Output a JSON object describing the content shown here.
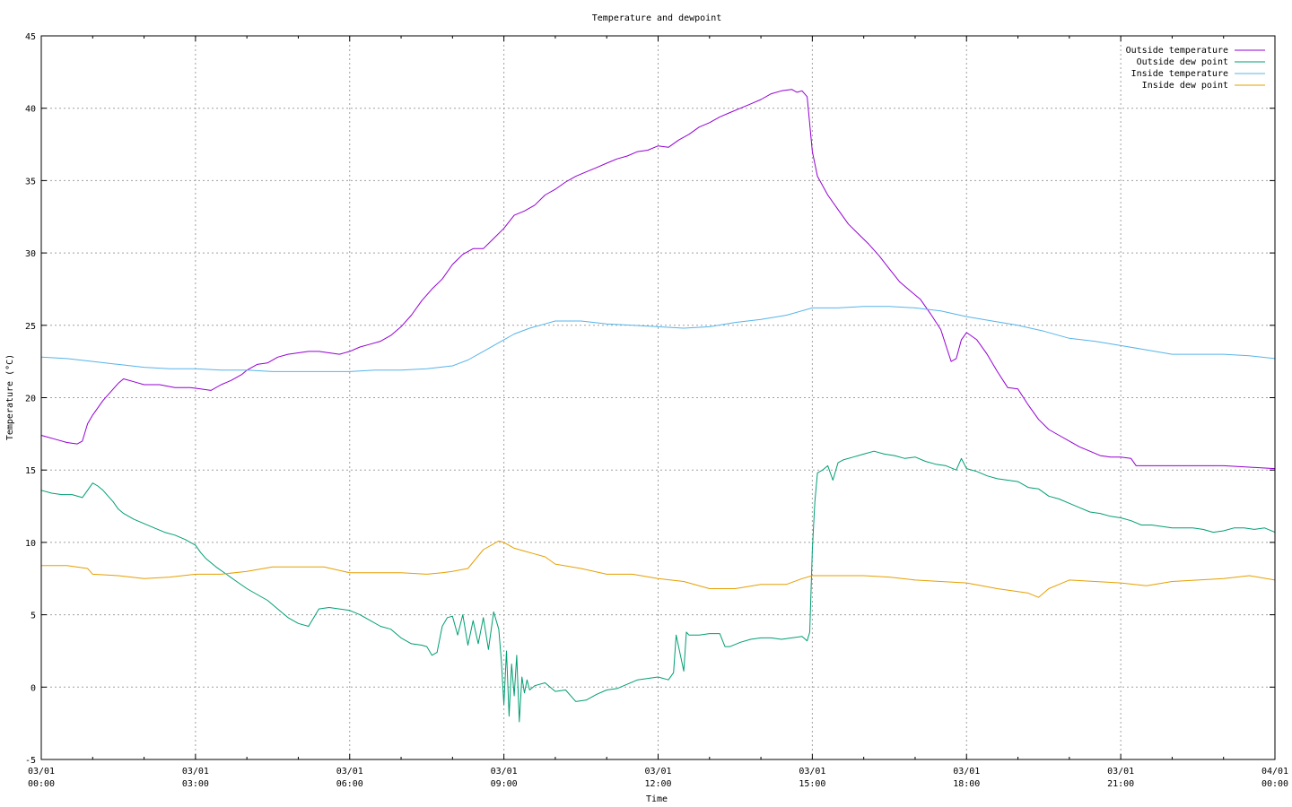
{
  "chart_data": {
    "type": "line",
    "title": "Temperature and dewpoint",
    "xlabel": "Time",
    "ylabel": "Temperature (°C)",
    "ylim": [
      -5,
      45
    ],
    "yticks": [
      -5,
      0,
      5,
      10,
      15,
      20,
      25,
      30,
      35,
      40,
      45
    ],
    "xlim": [
      "03/01 00:00",
      "04/01 00:00"
    ],
    "xticks": [
      {
        "hour": 0,
        "date": "03/01",
        "time": "00:00"
      },
      {
        "hour": 3,
        "date": "03/01",
        "time": "03:00"
      },
      {
        "hour": 6,
        "date": "03/01",
        "time": "06:00"
      },
      {
        "hour": 9,
        "date": "03/01",
        "time": "09:00"
      },
      {
        "hour": 12,
        "date": "03/01",
        "time": "12:00"
      },
      {
        "hour": 15,
        "date": "03/01",
        "time": "15:00"
      },
      {
        "hour": 18,
        "date": "03/01",
        "time": "18:00"
      },
      {
        "hour": 21,
        "date": "03/01",
        "time": "21:00"
      },
      {
        "hour": 24,
        "date": "04/01",
        "time": "00:00"
      }
    ],
    "minor_hours": [
      1,
      2,
      4,
      5,
      7,
      8,
      10,
      11,
      13,
      14,
      16,
      17,
      19,
      20,
      22,
      23
    ],
    "grid": true,
    "legend": "top-right",
    "series": [
      {
        "name": "Outside temperature",
        "color": "#9400d3",
        "x": [
          0,
          0.3,
          0.5,
          0.7,
          0.8,
          0.9,
          1.0,
          1.2,
          1.4,
          1.5,
          1.6,
          1.8,
          2.0,
          2.3,
          2.6,
          2.9,
          3.1,
          3.3,
          3.5,
          3.7,
          3.9,
          4.0,
          4.2,
          4.4,
          4.6,
          4.8,
          5.0,
          5.2,
          5.4,
          5.6,
          5.8,
          6.0,
          6.2,
          6.4,
          6.6,
          6.8,
          7.0,
          7.2,
          7.4,
          7.6,
          7.8,
          8.0,
          8.2,
          8.4,
          8.6,
          8.8,
          9.0,
          9.2,
          9.4,
          9.6,
          9.8,
          10.0,
          10.2,
          10.4,
          10.6,
          10.8,
          11.0,
          11.2,
          11.4,
          11.6,
          11.8,
          12.0,
          12.2,
          12.4,
          12.6,
          12.8,
          13.0,
          13.2,
          13.4,
          13.6,
          13.8,
          14.0,
          14.2,
          14.4,
          14.6,
          14.7,
          14.8,
          14.9,
          15.0,
          15.1,
          15.3,
          15.5,
          15.7,
          15.9,
          16.1,
          16.3,
          16.5,
          16.7,
          16.9,
          17.1,
          17.3,
          17.5,
          17.6,
          17.7,
          17.8,
          17.9,
          18.0,
          18.2,
          18.4,
          18.6,
          18.8,
          19.0,
          19.2,
          19.4,
          19.6,
          19.8,
          20.0,
          20.2,
          20.4,
          20.6,
          20.8,
          21.0,
          21.2,
          21.3,
          21.5,
          22.0,
          22.5,
          23.0,
          23.5,
          24.0
        ],
        "y": [
          17.4,
          17.1,
          16.9,
          16.8,
          17.0,
          18.2,
          18.8,
          19.8,
          20.6,
          21.0,
          21.3,
          21.1,
          20.9,
          20.9,
          20.7,
          20.7,
          20.6,
          20.5,
          20.9,
          21.2,
          21.6,
          21.9,
          22.3,
          22.4,
          22.8,
          23.0,
          23.1,
          23.2,
          23.2,
          23.1,
          23.0,
          23.2,
          23.5,
          23.7,
          23.9,
          24.3,
          24.9,
          25.7,
          26.7,
          27.5,
          28.2,
          29.2,
          29.9,
          30.3,
          30.3,
          31.0,
          31.7,
          32.6,
          32.9,
          33.3,
          34.0,
          34.4,
          34.9,
          35.3,
          35.6,
          35.9,
          36.2,
          36.5,
          36.7,
          37.0,
          37.1,
          37.4,
          37.3,
          37.8,
          38.2,
          38.7,
          39.0,
          39.4,
          39.7,
          40.0,
          40.3,
          40.6,
          41.0,
          41.2,
          41.3,
          41.1,
          41.2,
          40.8,
          37.0,
          35.3,
          34.0,
          33.0,
          32.0,
          31.3,
          30.6,
          29.8,
          28.9,
          28.0,
          27.4,
          26.8,
          25.8,
          24.7,
          23.6,
          22.5,
          22.7,
          24.0,
          24.5,
          24.0,
          23.0,
          21.8,
          20.7,
          20.6,
          19.5,
          18.5,
          17.8,
          17.4,
          17.0,
          16.6,
          16.3,
          16.0,
          15.9,
          15.9,
          15.8,
          15.3,
          15.3,
          15.3,
          15.3,
          15.3,
          15.2,
          15.1
        ]
      },
      {
        "name": "Outside dew point",
        "color": "#009e73",
        "x": [
          0,
          0.2,
          0.4,
          0.6,
          0.8,
          0.9,
          1.0,
          1.1,
          1.2,
          1.3,
          1.4,
          1.5,
          1.6,
          1.8,
          2.0,
          2.2,
          2.4,
          2.6,
          2.8,
          3.0,
          3.1,
          3.2,
          3.4,
          3.6,
          3.8,
          4.0,
          4.2,
          4.4,
          4.6,
          4.8,
          5.0,
          5.2,
          5.4,
          5.6,
          5.8,
          6.0,
          6.2,
          6.4,
          6.6,
          6.8,
          7.0,
          7.2,
          7.4,
          7.5,
          7.6,
          7.7,
          7.8,
          7.9,
          8.0,
          8.1,
          8.2,
          8.3,
          8.4,
          8.5,
          8.6,
          8.7,
          8.8,
          8.9,
          8.95,
          9.0,
          9.05,
          9.1,
          9.15,
          9.2,
          9.25,
          9.3,
          9.35,
          9.4,
          9.45,
          9.5,
          9.6,
          9.8,
          10.0,
          10.2,
          10.4,
          10.6,
          10.8,
          11.0,
          11.2,
          11.4,
          11.6,
          11.8,
          12.0,
          12.2,
          12.3,
          12.35,
          12.5,
          12.55,
          12.6,
          12.8,
          13.0,
          13.2,
          13.3,
          13.4,
          13.6,
          13.8,
          14.0,
          14.2,
          14.4,
          14.6,
          14.8,
          14.9,
          14.95,
          15.0,
          15.05,
          15.1,
          15.2,
          15.3,
          15.4,
          15.5,
          15.6,
          15.8,
          16.0,
          16.2,
          16.4,
          16.6,
          16.8,
          17.0,
          17.2,
          17.4,
          17.6,
          17.8,
          17.9,
          18.0,
          18.2,
          18.4,
          18.6,
          18.8,
          19.0,
          19.2,
          19.4,
          19.6,
          19.8,
          20.0,
          20.2,
          20.4,
          20.6,
          20.8,
          21.0,
          21.2,
          21.4,
          21.6,
          21.8,
          22.0,
          22.2,
          22.4,
          22.6,
          22.8,
          23.0,
          23.2,
          23.4,
          23.6,
          23.8,
          24.0
        ],
        "y": [
          13.6,
          13.4,
          13.3,
          13.3,
          13.1,
          13.6,
          14.1,
          13.9,
          13.6,
          13.2,
          12.8,
          12.3,
          12.0,
          11.6,
          11.3,
          11.0,
          10.7,
          10.5,
          10.2,
          9.8,
          9.3,
          8.9,
          8.3,
          7.8,
          7.3,
          6.8,
          6.4,
          6.0,
          5.4,
          4.8,
          4.4,
          4.2,
          5.4,
          5.5,
          5.4,
          5.3,
          5.0,
          4.6,
          4.2,
          4.0,
          3.4,
          3.0,
          2.9,
          2.8,
          2.2,
          2.4,
          4.2,
          4.8,
          4.9,
          3.6,
          5.0,
          2.9,
          4.6,
          3.0,
          4.8,
          2.6,
          5.2,
          4.0,
          1.8,
          -1.2,
          2.5,
          -2.0,
          1.6,
          -0.6,
          2.2,
          -2.4,
          0.7,
          -0.4,
          0.5,
          -0.2,
          0.1,
          0.3,
          -0.3,
          -0.2,
          -1.0,
          -0.9,
          -0.5,
          -0.2,
          -0.1,
          0.2,
          0.5,
          0.6,
          0.7,
          0.5,
          1.0,
          3.6,
          1.1,
          3.8,
          3.6,
          3.6,
          3.7,
          3.7,
          2.8,
          2.8,
          3.1,
          3.3,
          3.4,
          3.4,
          3.3,
          3.4,
          3.5,
          3.2,
          3.8,
          9.5,
          12.8,
          14.8,
          15.0,
          15.3,
          14.3,
          15.5,
          15.7,
          15.9,
          16.1,
          16.3,
          16.1,
          16.0,
          15.8,
          15.9,
          15.6,
          15.4,
          15.3,
          15.0,
          15.8,
          15.1,
          14.9,
          14.6,
          14.4,
          14.3,
          14.2,
          13.8,
          13.7,
          13.2,
          13.0,
          12.7,
          12.4,
          12.1,
          12.0,
          11.8,
          11.7,
          11.5,
          11.2,
          11.2,
          11.1,
          11.0,
          11.0,
          11.0,
          10.9,
          10.7,
          10.8,
          11.0,
          11.0,
          10.9,
          11.0,
          10.7
        ]
      },
      {
        "name": "Inside temperature",
        "color": "#56b4e9",
        "x": [
          0,
          0.5,
          1.0,
          1.5,
          2.0,
          2.5,
          3.0,
          3.5,
          4.0,
          4.5,
          5.0,
          5.5,
          6.0,
          6.5,
          7.0,
          7.5,
          8.0,
          8.3,
          8.6,
          8.9,
          9.2,
          9.5,
          9.8,
          10.0,
          10.5,
          11.0,
          11.5,
          12.0,
          12.5,
          13.0,
          13.5,
          14.0,
          14.5,
          15.0,
          15.5,
          16.0,
          16.5,
          17.0,
          17.5,
          18.0,
          18.5,
          19.0,
          19.5,
          20.0,
          20.5,
          21.0,
          21.5,
          22.0,
          22.5,
          23.0,
          23.5,
          24.0
        ],
        "y": [
          22.8,
          22.7,
          22.5,
          22.3,
          22.1,
          22.0,
          22.0,
          21.9,
          21.9,
          21.8,
          21.8,
          21.8,
          21.8,
          21.9,
          21.9,
          22.0,
          22.2,
          22.6,
          23.2,
          23.8,
          24.4,
          24.8,
          25.1,
          25.3,
          25.3,
          25.1,
          25.0,
          24.9,
          24.8,
          24.9,
          25.2,
          25.4,
          25.7,
          26.2,
          26.2,
          26.3,
          26.3,
          26.2,
          26.0,
          25.6,
          25.3,
          25.0,
          24.6,
          24.1,
          23.9,
          23.6,
          23.3,
          23.0,
          23.0,
          23.0,
          22.9,
          22.7
        ]
      },
      {
        "name": "Inside dew point",
        "color": "#e69f00",
        "x": [
          0,
          0.5,
          0.9,
          1.0,
          1.5,
          2.0,
          2.5,
          3.0,
          3.5,
          4.0,
          4.5,
          5.0,
          5.5,
          6.0,
          6.5,
          7.0,
          7.5,
          7.8,
          8.0,
          8.3,
          8.6,
          8.9,
          9.0,
          9.2,
          9.4,
          9.6,
          9.8,
          10.0,
          10.5,
          11.0,
          11.5,
          12.0,
          12.5,
          13.0,
          13.5,
          14.0,
          14.5,
          14.8,
          15.0,
          15.5,
          16.0,
          16.5,
          17.0,
          17.5,
          18.0,
          18.3,
          18.6,
          19.0,
          19.2,
          19.4,
          19.6,
          19.8,
          20.0,
          20.5,
          21.0,
          21.5,
          22.0,
          22.5,
          23.0,
          23.5,
          24.0
        ],
        "y": [
          8.4,
          8.4,
          8.2,
          7.8,
          7.7,
          7.5,
          7.6,
          7.8,
          7.8,
          8.0,
          8.3,
          8.3,
          8.3,
          7.9,
          7.9,
          7.9,
          7.8,
          7.9,
          8.0,
          8.2,
          9.5,
          10.1,
          10.0,
          9.6,
          9.4,
          9.2,
          9.0,
          8.5,
          8.2,
          7.8,
          7.8,
          7.5,
          7.3,
          6.8,
          6.8,
          7.1,
          7.1,
          7.5,
          7.7,
          7.7,
          7.7,
          7.6,
          7.4,
          7.3,
          7.2,
          7.0,
          6.8,
          6.6,
          6.5,
          6.2,
          6.8,
          7.1,
          7.4,
          7.3,
          7.2,
          7.0,
          7.3,
          7.4,
          7.5,
          7.7,
          7.4
        ]
      }
    ]
  }
}
